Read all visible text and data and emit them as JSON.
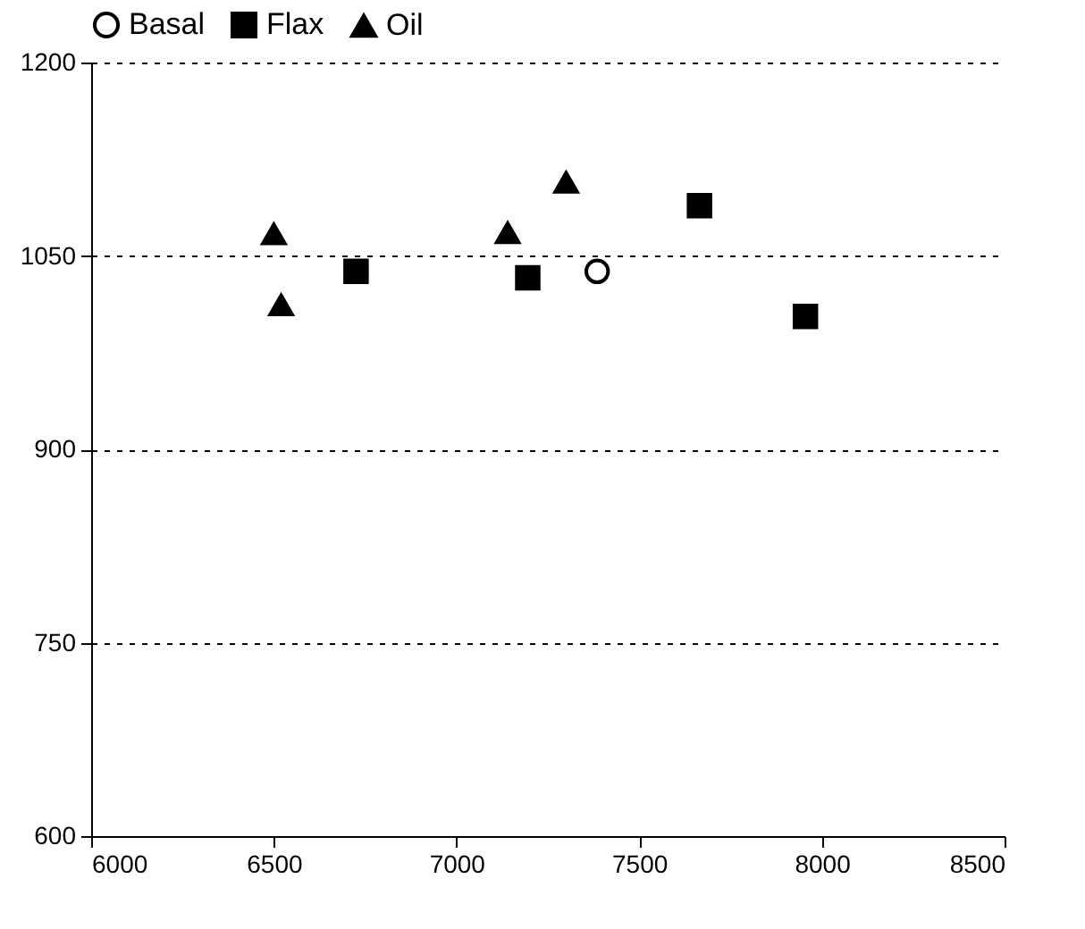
{
  "chart_data": {
    "type": "scatter",
    "legend": "top",
    "grid": "y",
    "xlim": [
      6000,
      8500
    ],
    "xticks": [
      6000,
      6500,
      7000,
      7500,
      8000,
      8500
    ],
    "ylim": [
      600,
      1200
    ],
    "yticks": [
      600,
      750,
      900,
      1050,
      1200
    ],
    "series": [
      {
        "name": "Basal",
        "color": "#ffffff",
        "marker": "circle",
        "x": [
          7385
        ],
        "values": [
          1038
        ]
      },
      {
        "name": "Flax",
        "color": "#000000",
        "marker": "square",
        "x": [
          6725,
          7195,
          7665,
          7955
        ],
        "values": [
          1038,
          1033,
          1089,
          1003
        ]
      },
      {
        "name": "Oil",
        "color": "#000000",
        "marker": "triangle",
        "x": [
          6500,
          6520,
          7140,
          7300
        ],
        "values": [
          1067,
          1012,
          1068,
          1107
        ]
      }
    ]
  }
}
